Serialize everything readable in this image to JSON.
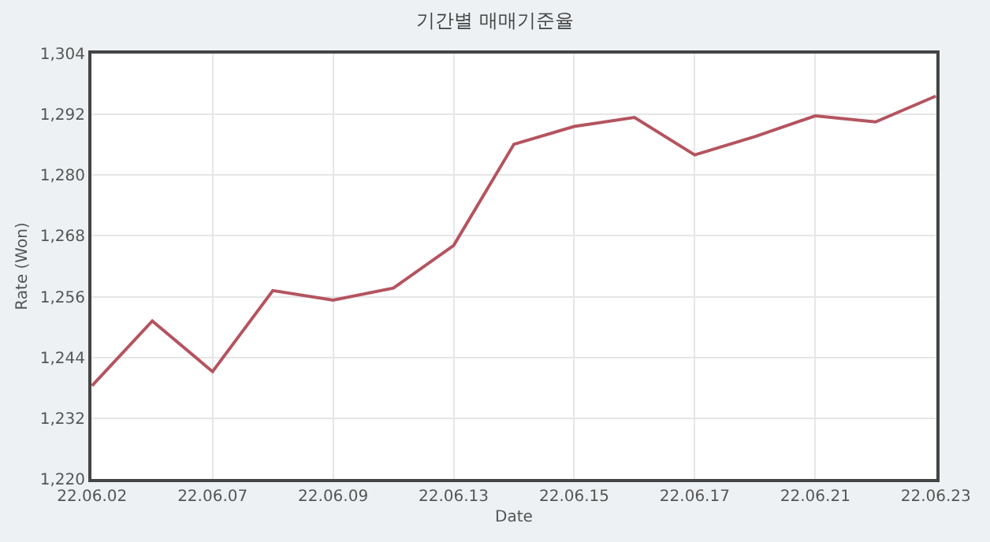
{
  "chart_data": {
    "type": "line",
    "title": "기간별 매매기준율",
    "xlabel": "Date",
    "ylabel": "Rate (Won)",
    "categories": [
      "22.06.02",
      null,
      "22.06.07",
      null,
      "22.06.09",
      null,
      "22.06.13",
      null,
      "22.06.15",
      null,
      "22.06.17",
      null,
      "22.06.21",
      null,
      "22.06.23"
    ],
    "series": [
      {
        "color": "#b4545f",
        "values": [
          1238.4,
          1251.2,
          1241.2,
          1257.2,
          1255.3,
          1257.7,
          1266.1,
          1286.1,
          1289.6,
          1291.4,
          1284.0,
          1287.6,
          1291.7,
          1290.5,
          1295.6
        ]
      }
    ],
    "ylim": [
      1220,
      1304
    ],
    "yticks": [
      {
        "value": 1220,
        "label": "1,220"
      },
      {
        "value": 1232,
        "label": "1,232"
      },
      {
        "value": 1244,
        "label": "1,244"
      },
      {
        "value": 1256,
        "label": "1,256"
      },
      {
        "value": 1268,
        "label": "1,268"
      },
      {
        "value": 1280,
        "label": "1,280"
      },
      {
        "value": 1292,
        "label": "1,292"
      },
      {
        "value": 1304,
        "label": "1,304"
      }
    ],
    "grid": true,
    "marker": "none",
    "line_style": "solid"
  }
}
